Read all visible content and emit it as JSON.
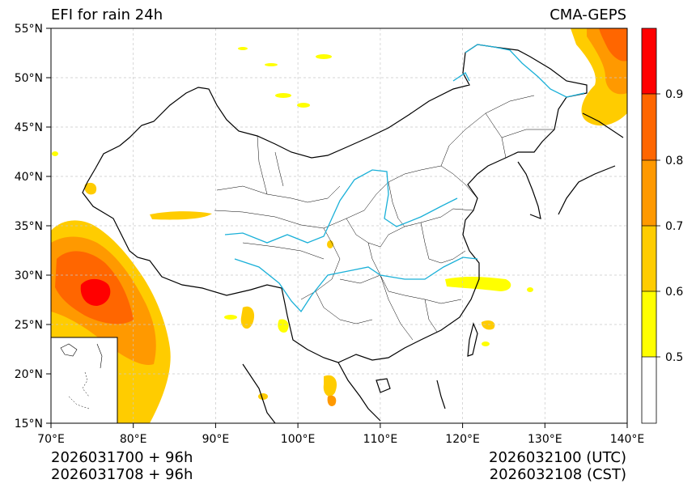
{
  "title": {
    "left": "EFI for rain 24h",
    "right": "CMA-GEPS"
  },
  "footer": {
    "init_utc": "2026031700 + 96h",
    "init_cst": "2026031708 + 96h",
    "valid_utc": "2026032100 (UTC)",
    "valid_cst": "2026032108 (CST)"
  },
  "axes": {
    "lon_min": 70,
    "lon_max": 140,
    "lat_min": 15,
    "lat_max": 55,
    "x_ticks": [
      "70°E",
      "80°E",
      "90°E",
      "100°E",
      "110°E",
      "120°E",
      "130°E",
      "140°E"
    ],
    "y_ticks": [
      "15°N",
      "20°N",
      "25°N",
      "30°N",
      "35°N",
      "40°N",
      "45°N",
      "50°N",
      "55°N"
    ]
  },
  "colorbar": {
    "levels": [
      0.5,
      0.6,
      0.7,
      0.8,
      0.9
    ],
    "labels": [
      "0.5",
      "0.6",
      "0.7",
      "0.8",
      "0.9"
    ],
    "colors": [
      "#ffffff",
      "#ffff00",
      "#ffcc00",
      "#ff9900",
      "#ff6600",
      "#ff0000"
    ]
  },
  "colors": {
    "river": "#1ab0d8",
    "grid": "#c8c8c8"
  }
}
